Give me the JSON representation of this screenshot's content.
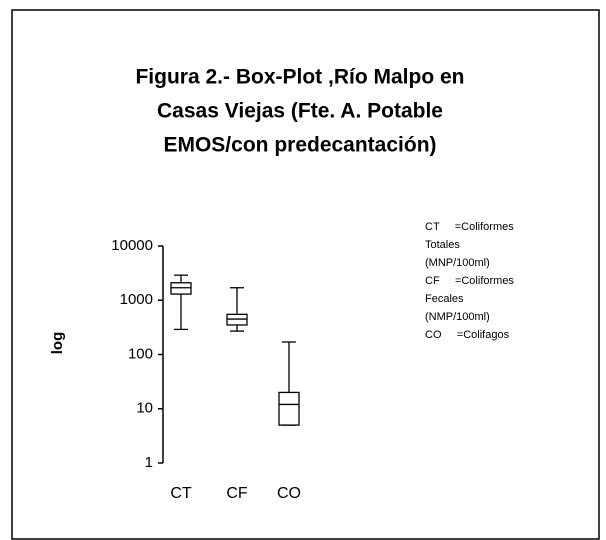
{
  "chart_data": {
    "type": "box",
    "title": [
      "Figura 2.- Box-Plot ,Río Malpo en",
      "Casas Viejas (Fte. A. Potable",
      "EMOS/con predecantación)"
    ],
    "ylabel": "log",
    "categories": [
      "CT",
      "CF",
      "CO"
    ],
    "boxes": [
      {
        "min": 290,
        "q1": 1300,
        "median": 1700,
        "q3": 2100,
        "max": 2900
      },
      {
        "min": 270,
        "q1": 350,
        "median": 450,
        "q3": 550,
        "max": 1700
      },
      {
        "min": 5,
        "q1": 5,
        "median": 12,
        "q3": 20,
        "max": 170
      }
    ],
    "color": "#ffffff",
    "log_scale": true,
    "ylim": [
      1,
      10000
    ],
    "yticks": [
      1,
      10,
      100,
      1000,
      10000
    ],
    "legend_text": [
      "CT     =Coliformes",
      "Totales",
      "(MNP/100ml)",
      "CF     =Coliformes",
      "Fecales",
      "(NMP/100ml)",
      "CO     =Colifagos"
    ]
  }
}
